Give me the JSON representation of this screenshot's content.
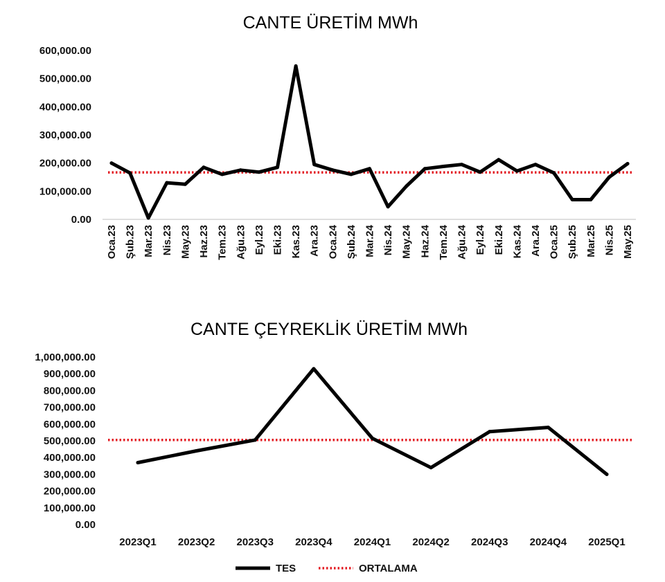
{
  "chart_data": [
    {
      "type": "line",
      "title": "CANTE ÜRETİM MWh",
      "xlabel": "",
      "ylabel": "",
      "ylim": [
        0,
        600000
      ],
      "yticks": [
        "0.00",
        "100,000.00",
        "200,000.00",
        "300,000.00",
        "400,000.00",
        "500,000.00",
        "600,000.00"
      ],
      "categories": [
        "Oca.23",
        "Şub.23",
        "Mar.23",
        "Nis.23",
        "May.23",
        "Haz.23",
        "Tem.23",
        "Ağu.23",
        "Eyl.23",
        "Eki.23",
        "Kas.23",
        "Ara.23",
        "Oca.24",
        "Şub.24",
        "Mar.24",
        "Nis.24",
        "May.24",
        "Haz.24",
        "Tem.24",
        "Ağu.24",
        "Eyl.24",
        "Eki.24",
        "Kas.24",
        "Ara.24",
        "Oca.25",
        "Şub.25",
        "Mar.25",
        "Nis.25",
        "May.25"
      ],
      "series": [
        {
          "name": "TES",
          "color": "#000000",
          "style": "solid",
          "values": [
            200000,
            165000,
            5000,
            130000,
            125000,
            185000,
            160000,
            175000,
            168000,
            185000,
            545000,
            195000,
            175000,
            160000,
            180000,
            45000,
            118000,
            180000,
            188000,
            195000,
            168000,
            212000,
            172000,
            195000,
            165000,
            70000,
            70000,
            150000,
            198000
          ]
        },
        {
          "name": "ORTALAMA",
          "color": "#e31c23",
          "style": "dotted",
          "values": [
            167000,
            167000,
            167000,
            167000,
            167000,
            167000,
            167000,
            167000,
            167000,
            167000,
            167000,
            167000,
            167000,
            167000,
            167000,
            167000,
            167000,
            167000,
            167000,
            167000,
            167000,
            167000,
            167000,
            167000,
            167000,
            167000,
            167000,
            167000,
            167000
          ]
        }
      ],
      "grid": false
    },
    {
      "type": "line",
      "title": "CANTE ÇEYREKLİK ÜRETİM MWh",
      "xlabel": "",
      "ylabel": "",
      "ylim": [
        0,
        1000000
      ],
      "yticks": [
        "0.00",
        "100,000.00",
        "200,000.00",
        "300,000.00",
        "400,000.00",
        "500,000.00",
        "600,000.00",
        "700,000.00",
        "800,000.00",
        "900,000.00",
        "1,000,000.00"
      ],
      "categories": [
        "2023Q1",
        "2023Q2",
        "2023Q3",
        "2023Q4",
        "2024Q1",
        "2024Q2",
        "2024Q3",
        "2024Q4",
        "2025Q1"
      ],
      "series": [
        {
          "name": "TES",
          "color": "#000000",
          "style": "solid",
          "values": [
            370000,
            440000,
            505000,
            930000,
            515000,
            340000,
            555000,
            580000,
            300000
          ]
        },
        {
          "name": "ORTALAMA",
          "color": "#e31c23",
          "style": "dotted",
          "values": [
            505000,
            505000,
            505000,
            505000,
            505000,
            505000,
            505000,
            505000,
            505000
          ]
        }
      ],
      "grid": false
    }
  ],
  "legend": {
    "items": [
      {
        "label": "TES",
        "color": "#000000",
        "style": "solid"
      },
      {
        "label": "ORTALAMA",
        "color": "#e31c23",
        "style": "dotted"
      }
    ],
    "placement": "bottom-center"
  }
}
